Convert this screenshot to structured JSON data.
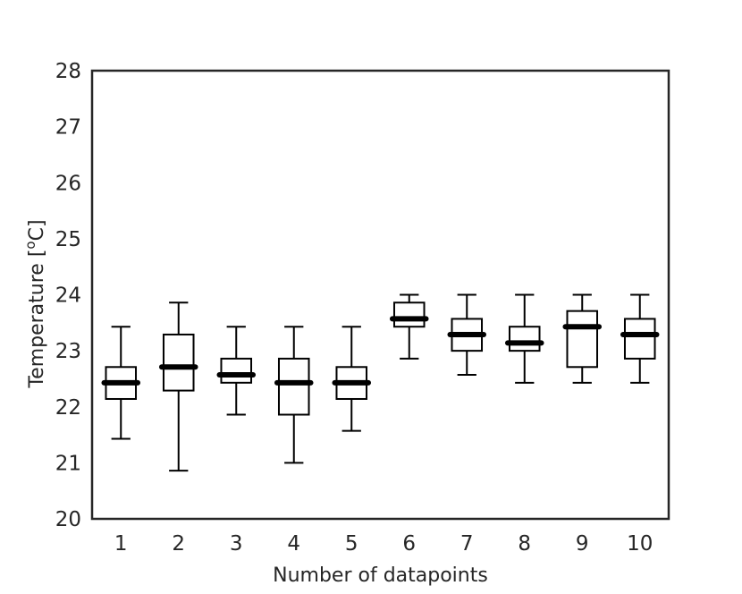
{
  "chart_data": {
    "type": "box",
    "xlabel": "Number of datapoints",
    "ylabel_prefix": "Temperature [",
    "ylabel_sup": "o",
    "ylabel_suffix": "C]",
    "ylim": [
      20,
      28
    ],
    "yticks": [
      20,
      21,
      22,
      23,
      24,
      25,
      26,
      27,
      28
    ],
    "grid": false,
    "categories": [
      "1",
      "2",
      "3",
      "4",
      "5",
      "6",
      "7",
      "8",
      "9",
      "10"
    ],
    "boxes": [
      {
        "whisker_low": 21.43,
        "q1": 22.14,
        "median": 22.43,
        "q3": 22.71,
        "whisker_high": 23.43
      },
      {
        "whisker_low": 20.86,
        "q1": 22.29,
        "median": 22.71,
        "q3": 23.29,
        "whisker_high": 23.86
      },
      {
        "whisker_low": 21.86,
        "q1": 22.43,
        "median": 22.57,
        "q3": 22.86,
        "whisker_high": 23.43
      },
      {
        "whisker_low": 21.0,
        "q1": 21.86,
        "median": 22.43,
        "q3": 22.86,
        "whisker_high": 23.43
      },
      {
        "whisker_low": 21.57,
        "q1": 22.14,
        "median": 22.43,
        "q3": 22.71,
        "whisker_high": 23.43
      },
      {
        "whisker_low": 22.86,
        "q1": 23.43,
        "median": 23.57,
        "q3": 23.86,
        "whisker_high": 24.0
      },
      {
        "whisker_low": 22.57,
        "q1": 23.0,
        "median": 23.29,
        "q3": 23.57,
        "whisker_high": 24.0
      },
      {
        "whisker_low": 22.43,
        "q1": 23.0,
        "median": 23.14,
        "q3": 23.43,
        "whisker_high": 24.0
      },
      {
        "whisker_low": 22.43,
        "q1": 22.71,
        "median": 23.43,
        "q3": 23.71,
        "whisker_high": 24.0
      },
      {
        "whisker_low": 22.43,
        "q1": 22.86,
        "median": 23.29,
        "q3": 23.57,
        "whisker_high": 24.0
      }
    ],
    "colors": {
      "frame": "#262626",
      "box": "#000000",
      "median": "#000000"
    }
  }
}
